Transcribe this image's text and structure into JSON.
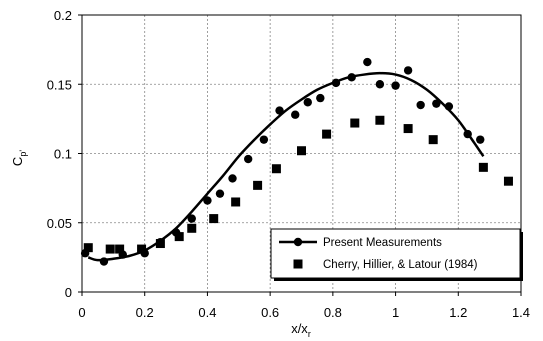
{
  "chart_data": {
    "type": "scatter",
    "xlabel": "x/x",
    "xlabel_sub": "r",
    "ylabel": "C",
    "ylabel_sub": "p'",
    "xlim": [
      0,
      1.4
    ],
    "ylim": [
      0,
      0.2
    ],
    "x_ticks": [
      0,
      0.2,
      0.4,
      0.6,
      0.8,
      1.0,
      1.2,
      1.4
    ],
    "x_tick_labels": [
      "0",
      "0.2",
      "0.4",
      "0.6",
      "0.8",
      "1",
      "1.2",
      "1.4"
    ],
    "y_ticks": [
      0,
      0.05,
      0.1,
      0.15,
      0.2
    ],
    "y_tick_labels": [
      "0",
      "0.05",
      "0.1",
      "0.15",
      "0.2"
    ],
    "grid": true,
    "legend_position": "bottom-right",
    "series": [
      {
        "name": "Present Measurements",
        "marker": "circle",
        "color": "#000000",
        "points": [
          [
            0.01,
            0.028
          ],
          [
            0.07,
            0.022
          ],
          [
            0.13,
            0.027
          ],
          [
            0.2,
            0.028
          ],
          [
            0.25,
            0.036
          ],
          [
            0.3,
            0.043
          ],
          [
            0.35,
            0.053
          ],
          [
            0.4,
            0.066
          ],
          [
            0.44,
            0.071
          ],
          [
            0.48,
            0.082
          ],
          [
            0.53,
            0.096
          ],
          [
            0.58,
            0.11
          ],
          [
            0.63,
            0.131
          ],
          [
            0.68,
            0.128
          ],
          [
            0.72,
            0.137
          ],
          [
            0.76,
            0.14
          ],
          [
            0.81,
            0.151
          ],
          [
            0.86,
            0.155
          ],
          [
            0.91,
            0.166
          ],
          [
            0.95,
            0.15
          ],
          [
            1.0,
            0.149
          ],
          [
            1.04,
            0.16
          ],
          [
            1.08,
            0.135
          ],
          [
            1.13,
            0.136
          ],
          [
            1.17,
            0.134
          ],
          [
            1.23,
            0.114
          ],
          [
            1.27,
            0.11
          ]
        ],
        "fit_curve": [
          [
            0.02,
            0.025
          ],
          [
            0.05,
            0.023
          ],
          [
            0.1,
            0.024
          ],
          [
            0.15,
            0.026
          ],
          [
            0.2,
            0.03
          ],
          [
            0.25,
            0.037
          ],
          [
            0.3,
            0.046
          ],
          [
            0.35,
            0.058
          ],
          [
            0.4,
            0.071
          ],
          [
            0.45,
            0.084
          ],
          [
            0.5,
            0.098
          ],
          [
            0.55,
            0.11
          ],
          [
            0.6,
            0.121
          ],
          [
            0.65,
            0.131
          ],
          [
            0.7,
            0.139
          ],
          [
            0.75,
            0.146
          ],
          [
            0.8,
            0.151
          ],
          [
            0.85,
            0.155
          ],
          [
            0.9,
            0.157
          ],
          [
            0.95,
            0.158
          ],
          [
            1.0,
            0.157
          ],
          [
            1.05,
            0.153
          ],
          [
            1.1,
            0.146
          ],
          [
            1.15,
            0.136
          ],
          [
            1.2,
            0.124
          ],
          [
            1.25,
            0.108
          ],
          [
            1.28,
            0.098
          ]
        ]
      },
      {
        "name": "Cherry, Hillier, & Latour (1984)",
        "marker": "square",
        "color": "#000000",
        "points": [
          [
            0.02,
            0.032
          ],
          [
            0.09,
            0.031
          ],
          [
            0.12,
            0.031
          ],
          [
            0.19,
            0.031
          ],
          [
            0.25,
            0.035
          ],
          [
            0.31,
            0.04
          ],
          [
            0.35,
            0.046
          ],
          [
            0.42,
            0.053
          ],
          [
            0.49,
            0.065
          ],
          [
            0.56,
            0.077
          ],
          [
            0.62,
            0.089
          ],
          [
            0.7,
            0.102
          ],
          [
            0.78,
            0.114
          ],
          [
            0.87,
            0.122
          ],
          [
            0.95,
            0.124
          ],
          [
            1.04,
            0.118
          ],
          [
            1.12,
            0.11
          ],
          [
            1.28,
            0.09
          ],
          [
            1.36,
            0.08
          ]
        ]
      }
    ]
  }
}
